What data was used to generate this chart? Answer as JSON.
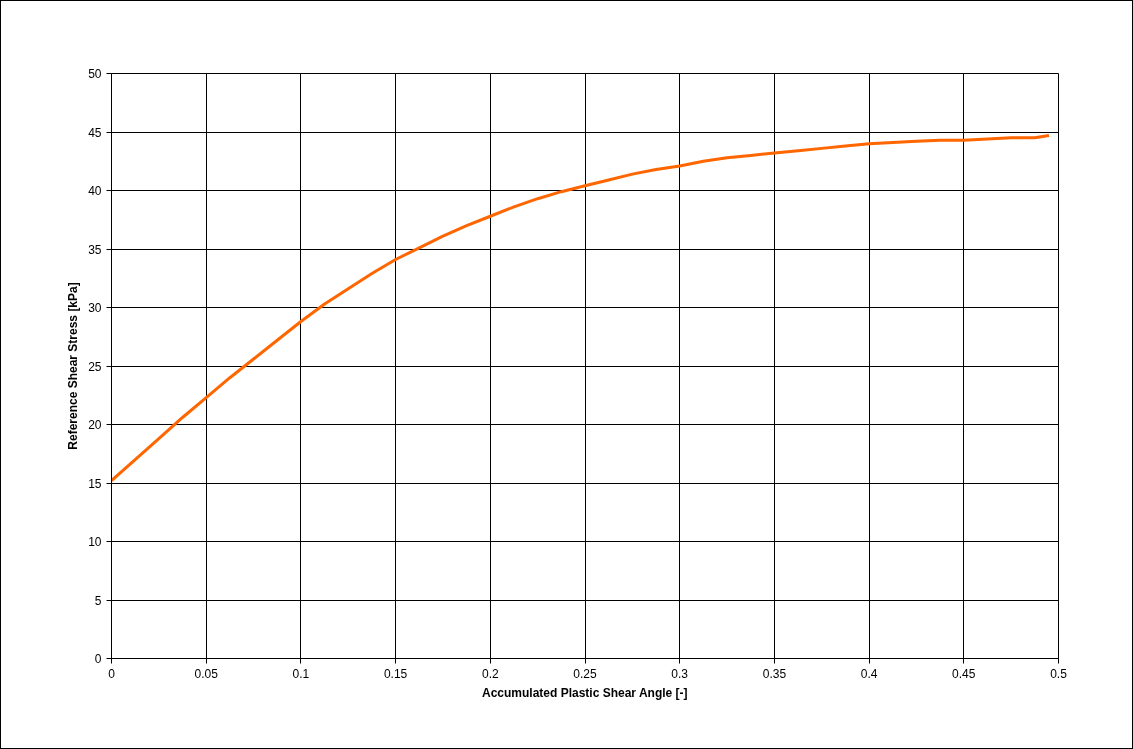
{
  "chart_data": {
    "type": "line",
    "xlabel": "Accumulated Plastic Shear Angle [-]",
    "ylabel": "Reference Shear Stress [kPa]",
    "series": [
      {
        "color": "#ff6600",
        "x": [
          0,
          0.0125,
          0.025,
          0.0375,
          0.05,
          0.0625,
          0.075,
          0.0875,
          0.1,
          0.1125,
          0.125,
          0.1375,
          0.15,
          0.1625,
          0.175,
          0.1875,
          0.2,
          0.2125,
          0.225,
          0.2375,
          0.25,
          0.2625,
          0.275,
          0.2875,
          0.3,
          0.3125,
          0.325,
          0.3375,
          0.35,
          0.3625,
          0.375,
          0.3875,
          0.4,
          0.4125,
          0.425,
          0.4375,
          0.45,
          0.4625,
          0.475,
          0.4875,
          0.495
        ],
        "values": [
          15.2,
          17.0,
          18.8,
          20.6,
          22.3,
          24.0,
          25.6,
          27.2,
          28.8,
          30.3,
          31.6,
          32.9,
          34.1,
          35.1,
          36.1,
          37.0,
          37.8,
          38.6,
          39.3,
          39.9,
          40.4,
          40.9,
          41.4,
          41.8,
          42.1,
          42.5,
          42.8,
          43.0,
          43.2,
          43.4,
          43.6,
          43.8,
          44.0,
          44.1,
          44.2,
          44.3,
          44.3,
          44.4,
          44.5,
          44.5,
          44.7
        ]
      }
    ],
    "xlim": [
      0,
      0.5
    ],
    "ylim": [
      0,
      50
    ],
    "xticks": [
      0,
      0.05,
      0.1,
      0.15,
      0.2,
      0.25,
      0.3,
      0.35,
      0.4,
      0.45,
      0.5
    ],
    "yticks": [
      0,
      5,
      10,
      15,
      20,
      25,
      30,
      35,
      40,
      45,
      50
    ],
    "grid": true,
    "marker": "none",
    "line_style": "solid"
  }
}
